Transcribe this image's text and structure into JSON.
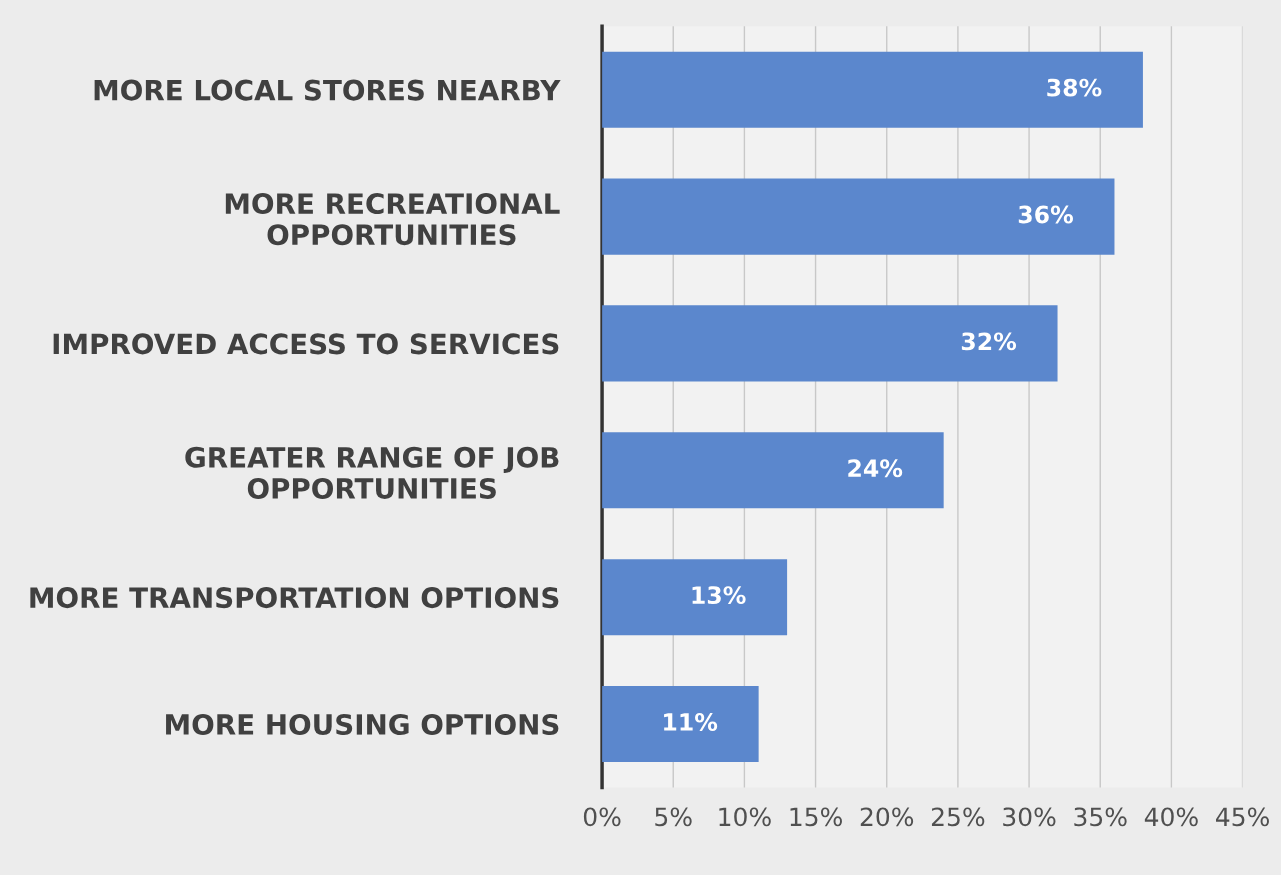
{
  "chart_data": {
    "type": "bar",
    "orientation": "horizontal",
    "categories": [
      "MORE LOCAL STORES NEARBY",
      "MORE RECREATIONAL\nOPPORTUNITIES",
      "IMPROVED ACCESS TO SERVICES",
      "GREATER RANGE OF JOB\nOPPORTUNITIES",
      "MORE TRANSPORTATION OPTIONS",
      "MORE HOUSING OPTIONS"
    ],
    "values": [
      38,
      36,
      32,
      24,
      13,
      11
    ],
    "value_labels": [
      "38%",
      "36%",
      "32%",
      "24%",
      "13%",
      "11%"
    ],
    "color": "#5b87cd",
    "xlim": [
      0,
      45
    ],
    "xticks": [
      {
        "value": 0,
        "label": "0%"
      },
      {
        "value": 5,
        "label": "5%"
      },
      {
        "value": 10,
        "label": "10%"
      },
      {
        "value": 15,
        "label": "15%"
      },
      {
        "value": 20,
        "label": "20%"
      },
      {
        "value": 25,
        "label": "25%"
      },
      {
        "value": 30,
        "label": "30%"
      },
      {
        "value": 35,
        "label": "35%"
      },
      {
        "value": 40,
        "label": "40%"
      },
      {
        "value": 45,
        "label": "45%"
      }
    ],
    "grid": "x"
  }
}
